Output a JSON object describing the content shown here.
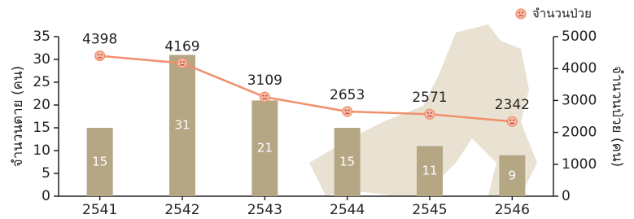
{
  "chart_data": {
    "type": "combo",
    "categories": [
      "2541",
      "2542",
      "2543",
      "2544",
      "2545",
      "2546"
    ],
    "ylabel": "จำนวนตาย (คน)",
    "y2label": "จำนวนป่วย (คน)",
    "ylim": [
      0,
      35
    ],
    "yticks": [
      0,
      5,
      10,
      15,
      20,
      25,
      30,
      35
    ],
    "y2lim": [
      0,
      5000
    ],
    "y2ticks": [
      0,
      1000,
      2000,
      3000,
      4000,
      5000
    ],
    "legend": "top-right",
    "series": [
      {
        "type": "bar",
        "color": "#b5a684",
        "values": [
          15,
          31,
          21,
          15,
          11,
          9
        ]
      },
      {
        "type": "line",
        "name": "จำนวนป่วย",
        "axis": "y2",
        "color": "#f0906c",
        "values": [
          4398,
          4169,
          3109,
          2653,
          2571,
          2342
        ]
      }
    ]
  }
}
